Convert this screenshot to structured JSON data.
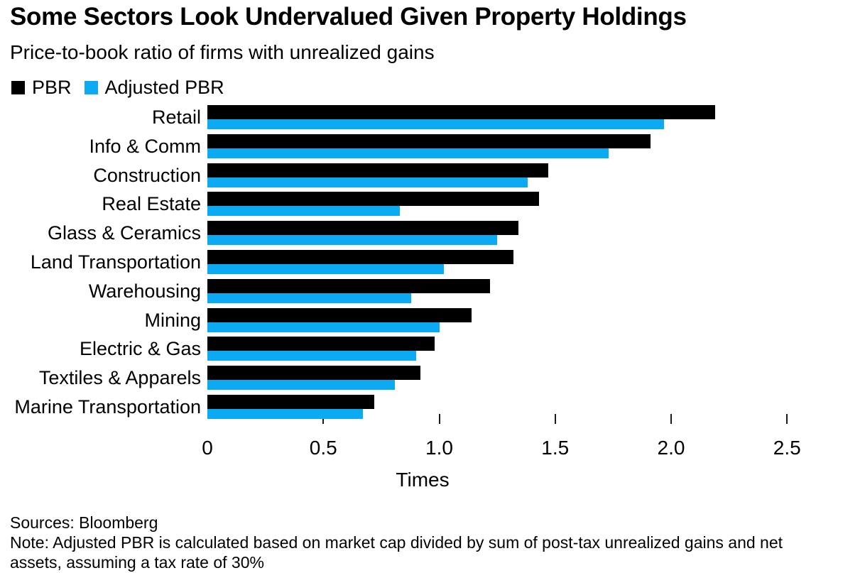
{
  "chart_data": {
    "type": "bar",
    "orientation": "horizontal",
    "title": "Some Sectors Look Undervalued Given Property Holdings",
    "subtitle": "Price-to-book ratio of firms with unrealized gains",
    "xlabel": "Times",
    "xlim": [
      0,
      2.5
    ],
    "x_tick_labels": [
      "0",
      "0.5",
      "1.0",
      "1.5",
      "2.0",
      "2.5"
    ],
    "x_tick_values": [
      0,
      0.5,
      1.0,
      1.5,
      2.0,
      2.5
    ],
    "grid": false,
    "legend_position": "top-left",
    "colors": {
      "pbr": "#000000",
      "adjusted_pbr": "#0caaf2"
    },
    "legend": [
      {
        "name": "PBR",
        "color": "#000000"
      },
      {
        "name": "Adjusted PBR",
        "color": "#0caaf2"
      }
    ],
    "categories": [
      "Retail",
      "Info & Comm",
      "Construction",
      "Real Estate",
      "Glass & Ceramics",
      "Land Transportation",
      "Warehousing",
      "Mining",
      "Electric & Gas",
      "Textiles & Apparels",
      "Marine Transportation"
    ],
    "series": [
      {
        "name": "PBR",
        "color": "#000000",
        "values": [
          2.19,
          1.91,
          1.47,
          1.43,
          1.34,
          1.32,
          1.22,
          1.14,
          0.98,
          0.92,
          0.72
        ]
      },
      {
        "name": "Adjusted PBR",
        "color": "#0caaf2",
        "values": [
          1.97,
          1.73,
          1.38,
          0.83,
          1.25,
          1.02,
          0.88,
          1.0,
          0.9,
          0.81,
          0.67
        ]
      }
    ]
  },
  "footer": {
    "sources": "Sources: Bloomberg",
    "note": "Note: Adjusted PBR is calculated based on market cap divided by sum of post-tax unrealized gains and net assets, assuming a tax rate of 30%"
  }
}
